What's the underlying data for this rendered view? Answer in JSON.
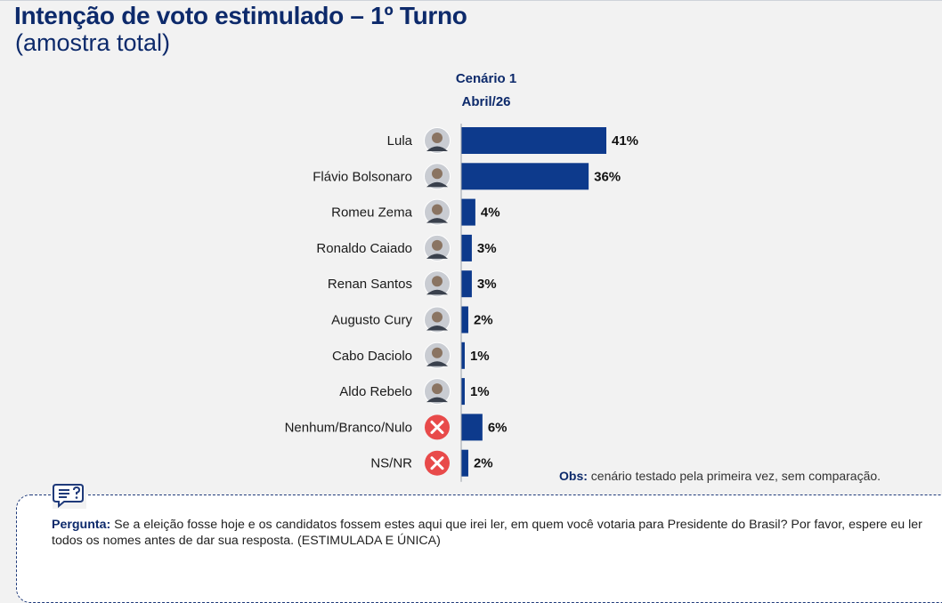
{
  "header": {
    "title": "Intenção de voto estimulado – 1º Turno",
    "subtitle": "(amostra total)"
  },
  "scenario": {
    "name": "Cenário 1",
    "date": "Abril/26"
  },
  "chart_data": {
    "type": "bar",
    "orientation": "horizontal",
    "categories": [
      "Lula",
      "Flávio Bolsonaro",
      "Romeu Zema",
      "Ronaldo Caiado",
      "Renan Santos",
      "Augusto Cury",
      "Cabo Daciolo",
      "Aldo Rebelo",
      "Nenhum/Branco/Nulo",
      "NS/NR"
    ],
    "values": [
      41,
      36,
      4,
      3,
      3,
      2,
      1,
      1,
      6,
      2
    ],
    "value_labels": [
      "41%",
      "36%",
      "4%",
      "3%",
      "3%",
      "2%",
      "1%",
      "1%",
      "6%",
      "2%"
    ],
    "icons": [
      "candidate-photo",
      "candidate-photo",
      "candidate-photo",
      "candidate-photo",
      "candidate-photo",
      "candidate-photo",
      "candidate-photo",
      "candidate-photo",
      "x-circle",
      "x-circle"
    ],
    "bar_color": "#0d3a8c",
    "x_range": [
      0,
      45
    ],
    "grid": false,
    "legend": "none"
  },
  "obs": {
    "label": "Obs:",
    "text": " cenário testado pela primeira vez, sem comparação."
  },
  "question": {
    "label": "Pergunta:",
    "text": " Se a eleição fosse hoje e os candidatos fossem estes aqui que irei ler, em quem você votaria para Presidente do Brasil? Por favor, espere eu ler todos os nomes antes de dar sua resposta. (ESTIMULADA E ÚNICA)"
  },
  "colors": {
    "accent": "#0d2a6b",
    "bar": "#0d3a8c",
    "x_icon": "#e84a4a"
  }
}
